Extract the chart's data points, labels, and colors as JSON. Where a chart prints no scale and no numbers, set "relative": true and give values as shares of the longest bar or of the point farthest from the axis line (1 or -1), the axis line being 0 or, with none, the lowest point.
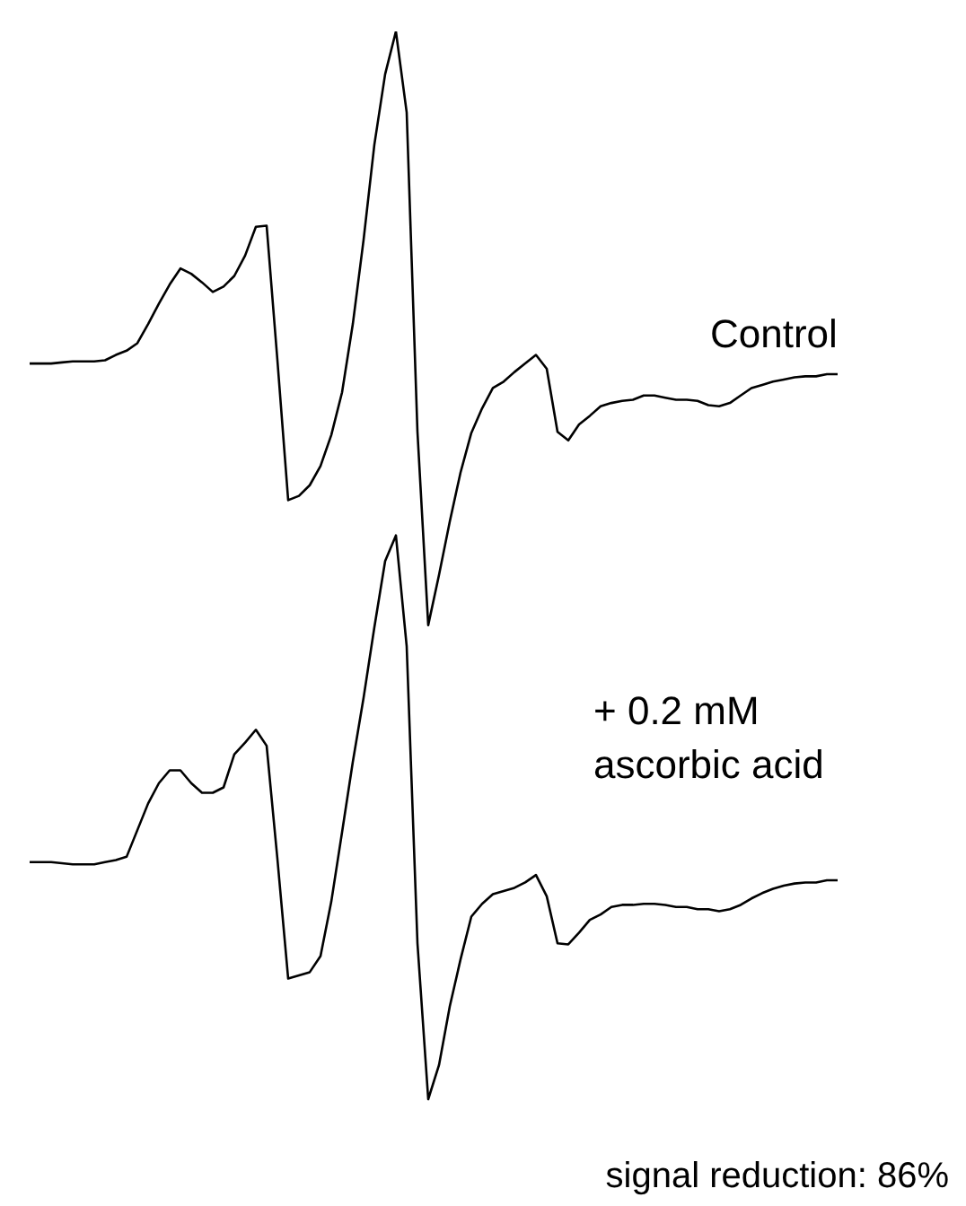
{
  "chart_data": {
    "type": "line",
    "relative": true,
    "grid": false,
    "categories": [
      null,
      null,
      null,
      null,
      null,
      null,
      null,
      null,
      null,
      null,
      null,
      null,
      null,
      null,
      null,
      null,
      null,
      null,
      null,
      null,
      null,
      null,
      null,
      null,
      null,
      null,
      null,
      null,
      null,
      null,
      null,
      null,
      null,
      null,
      null,
      null,
      null,
      null,
      null,
      null,
      null,
      null,
      null,
      null,
      null,
      null,
      null,
      null,
      null,
      null,
      null,
      null,
      null,
      null,
      null,
      null,
      null,
      null,
      null,
      null,
      null,
      null,
      null,
      null,
      null,
      null,
      null,
      null,
      null,
      null,
      null,
      null,
      null,
      null,
      null,
      null
    ],
    "annotations": [
      "signal reduction: 86%"
    ],
    "series": [
      {
        "name": "Control",
        "color": "#000000",
        "values": [
          0.689,
          0.689,
          0.689,
          0.69,
          0.691,
          0.691,
          0.691,
          0.692,
          0.697,
          0.701,
          0.708,
          0.726,
          0.745,
          0.763,
          0.778,
          0.773,
          0.765,
          0.756,
          0.761,
          0.771,
          0.79,
          0.817,
          0.818,
          0.692,
          0.561,
          0.565,
          0.575,
          0.593,
          0.622,
          0.662,
          0.726,
          0.805,
          0.894,
          0.96,
          1.0,
          0.924,
          0.625,
          0.444,
          0.491,
          0.541,
          0.587,
          0.624,
          0.647,
          0.666,
          0.672,
          0.681,
          0.689,
          0.697,
          0.684,
          0.625,
          0.617,
          0.632,
          0.64,
          0.649,
          0.652,
          0.654,
          0.655,
          0.659,
          0.659,
          0.657,
          0.655,
          0.655,
          0.654,
          0.65,
          0.649,
          0.652,
          0.659,
          0.666,
          0.669,
          0.672,
          0.674,
          0.676,
          0.677,
          0.677,
          0.679,
          0.679
        ]
      },
      {
        "name": "+ 0.2 mM\nascorbic acid",
        "color": "#000000",
        "values": [
          0.222,
          0.222,
          0.222,
          0.221,
          0.22,
          0.22,
          0.22,
          0.222,
          0.224,
          0.227,
          0.252,
          0.277,
          0.296,
          0.308,
          0.308,
          0.296,
          0.287,
          0.287,
          0.292,
          0.323,
          0.334,
          0.346,
          0.331,
          0.225,
          0.113,
          0.116,
          0.119,
          0.134,
          0.185,
          0.25,
          0.316,
          0.376,
          0.442,
          0.504,
          0.528,
          0.424,
          0.146,
          0.0,
          0.032,
          0.087,
          0.131,
          0.171,
          0.183,
          0.192,
          0.195,
          0.198,
          0.203,
          0.21,
          0.19,
          0.146,
          0.145,
          0.156,
          0.168,
          0.173,
          0.18,
          0.182,
          0.182,
          0.183,
          0.183,
          0.182,
          0.18,
          0.18,
          0.178,
          0.178,
          0.176,
          0.178,
          0.182,
          0.188,
          0.193,
          0.197,
          0.2,
          0.202,
          0.203,
          0.203,
          0.205,
          0.205
        ]
      }
    ]
  }
}
